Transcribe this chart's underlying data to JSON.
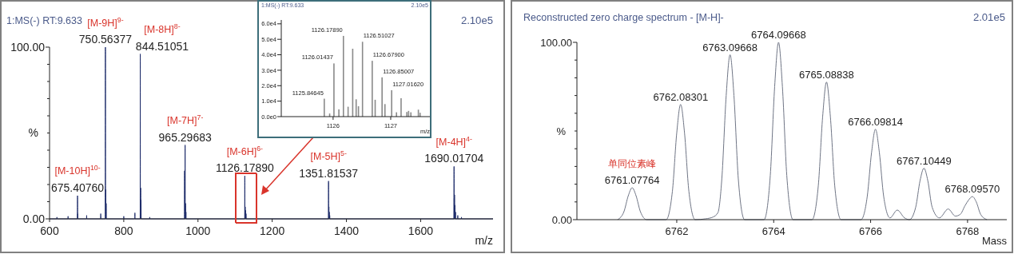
{
  "chart_data": [
    {
      "type": "line",
      "title": "1:MS(-) RT:9.633",
      "xlabel": "m/z",
      "ylabel": "%",
      "annotations": [
        "2.10e5",
        {
          "text": "[M-10H]$^{10-}$",
          "x": 675.41,
          "y": 13.5
        },
        {
          "text": "675.40760",
          "x": 675.41,
          "y": 13.5
        },
        {
          "text": "[M-9H]$^{9-}$",
          "x": 750.56,
          "y": 100
        },
        {
          "text": "750.56377",
          "x": 750.56,
          "y": 100
        },
        {
          "text": "[M-8H]$^{8-}$",
          "x": 844.51,
          "y": 96
        },
        {
          "text": "844.51051",
          "x": 844.51,
          "y": 96
        },
        {
          "text": "[M-7H]$^{7-}$",
          "x": 965.3,
          "y": 43
        },
        {
          "text": "965.29683",
          "x": 965.3,
          "y": 43
        },
        {
          "text": "[M-6H]$^{6-}$",
          "x": 1126.18,
          "y": 25
        },
        {
          "text": "1126.17890",
          "x": 1126.18,
          "y": 25
        },
        {
          "text": "[M-5H]$^{5-}$",
          "x": 1351.82,
          "y": 22
        },
        {
          "text": "1351.81537",
          "x": 1351.82,
          "y": 22
        },
        {
          "text": "[M-4H]$^{4-}$",
          "x": 1690.02,
          "y": 30.5
        },
        {
          "text": "1690.01704",
          "x": 1690.02,
          "y": 30.5
        }
      ],
      "x": [
        600,
        619.7,
        620,
        620.3,
        649.7,
        650,
        650.3,
        675.1,
        675.41,
        675.7,
        675.7,
        676,
        676.3,
        699.7,
        700,
        700.3,
        737.7,
        738,
        738.3,
        750.26,
        750.56,
        750.86,
        751.2,
        751.5,
        751.8,
        752.3,
        752.6,
        752.9,
        799.7,
        800,
        800.3,
        829.7,
        830,
        830.3,
        844.21,
        844.51,
        844.81,
        845.2,
        845.5,
        845.8,
        846.3,
        846.6,
        846.9,
        869.7,
        870,
        870.3,
        963.6,
        963.9,
        964.2,
        965.0,
        965.3,
        965.6,
        966.2,
        966.5,
        966.8,
        967.3,
        967.6,
        967.9,
        1125.88,
        1126.18,
        1126.48,
        1126.9,
        1127.2,
        1127.5,
        1127.9,
        1128.2,
        1128.5,
        1129.2,
        1129.5,
        1129.8,
        1351.52,
        1351.82,
        1352.12,
        1352.5,
        1352.8,
        1353.1,
        1353.5,
        1353.8,
        1354.1,
        1354.7,
        1355,
        1355.3,
        1689.72,
        1690.02,
        1690.3,
        1690.5,
        1690.8,
        1691.0,
        1691.3,
        1691.6,
        1692.2,
        1692.5,
        1692.8,
        1693.7,
        1694,
        1694.3,
        1699.7,
        1700,
        1700.3,
        1709.7,
        1710,
        1710.3,
        1795
      ],
      "series": [
        {
          "color": "#1f2d6b",
          "values": [
            0,
            0,
            1,
            0,
            0,
            1.5,
            0,
            0,
            13.5,
            0,
            0,
            3,
            0,
            0,
            2,
            0,
            0,
            3,
            0,
            0,
            100,
            0,
            0,
            17,
            0,
            0,
            9,
            0,
            0,
            1.5,
            0,
            0,
            3.5,
            0,
            0,
            96,
            0,
            0,
            18,
            0,
            0,
            11,
            0,
            0,
            1,
            0,
            0,
            28,
            0,
            0,
            43,
            0,
            0,
            9,
            0,
            0,
            4,
            0,
            0,
            25,
            0,
            0,
            7,
            0,
            0,
            5,
            0,
            0,
            3,
            0,
            0,
            22,
            0,
            0,
            7,
            0,
            0,
            4,
            0,
            0,
            2,
            0,
            0,
            30.5,
            0,
            12,
            0,
            0,
            14,
            0,
            0,
            8,
            0,
            0,
            4,
            0,
            0,
            2,
            0,
            0,
            1,
            0,
            0
          ]
        }
      ],
      "xlim": [
        600,
        1795
      ],
      "ylim": [
        0,
        100
      ],
      "xticks": [
        600,
        800,
        1000,
        1200,
        1400,
        1600
      ],
      "yticks": [
        {
          "value": 0,
          "label": "0.00"
        },
        {
          "value": 10,
          "label": null
        },
        {
          "value": 20,
          "label": null
        },
        {
          "value": 30,
          "label": null
        },
        {
          "value": 40,
          "label": null
        },
        {
          "value": 50,
          "label": null
        },
        {
          "value": 60,
          "label": null
        },
        {
          "value": 70,
          "label": null
        },
        {
          "value": 80,
          "label": null
        },
        {
          "value": 90,
          "label": null
        },
        {
          "value": 100,
          "label": "100.00"
        }
      ]
    },
    {
      "type": "bar",
      "title": "1:MS(-) RT:9.633",
      "xlabel": "m/z",
      "color": "#8a8a8a",
      "annotations": [
        "2.10e5",
        {
          "text": "1125.84645",
          "x": 1125.84645,
          "y": 11600
        },
        {
          "text": "1126.01437",
          "x": 1126.01437,
          "y": 34400
        },
        {
          "text": "1126.17890",
          "x": 1126.1789,
          "y": 52200
        },
        {
          "text": "1126.51027",
          "x": 1126.51027,
          "y": 48400
        },
        {
          "text": "1126.67900",
          "x": 1126.679,
          "y": 36100
        },
        {
          "text": "1126.85007",
          "x": 1126.85007,
          "y": 25400
        },
        {
          "text": "1127.01620",
          "x": 1127.0162,
          "y": 17100
        }
      ],
      "x": [
        1125.84645,
        1125.94,
        1126.01437,
        1126.1,
        1126.1789,
        1126.26,
        1126.34,
        1126.4,
        1126.44,
        1126.51027,
        1126.679,
        1126.73,
        1126.85007,
        1126.9,
        1127.0162,
        1127.1,
        1127.18,
        1127.28,
        1127.31,
        1127.35,
        1127.48,
        1127.51
      ],
      "values": [
        11600,
        2000,
        34400,
        4700,
        52200,
        6400,
        43900,
        11200,
        6700,
        48400,
        36100,
        10900,
        25400,
        8100,
        17100,
        2800,
        11900,
        3000,
        3700,
        2800,
        4500,
        2500
      ],
      "xlim": [
        1125.1,
        1127.68
      ],
      "ylim": [
        0,
        62500
      ],
      "xticks": [
        1126,
        1127
      ],
      "yticks": [
        {
          "value": 0,
          "label": "0.0e0"
        },
        {
          "value": 10000,
          "label": "1.0e4"
        },
        {
          "value": 20000,
          "label": "2.0e4"
        },
        {
          "value": 30000,
          "label": "3.0e4"
        },
        {
          "value": 40000,
          "label": "4.0e4"
        },
        {
          "value": 50000,
          "label": "5.0e4"
        },
        {
          "value": 60000,
          "label": "6.0e4"
        }
      ]
    },
    {
      "type": "line",
      "title": "Reconstructed zero charge spectrum - [M-H]-",
      "xlabel": "Mass",
      "ylabel": "%",
      "annotations": [
        "2.01e5",
        {
          "text": "单同位素峰",
          "x": 6761.08,
          "y": 18
        },
        {
          "text": "6761.07764",
          "x": 6761.08,
          "y": 18
        },
        {
          "text": "6762.08301",
          "x": 6762.08,
          "y": 65
        },
        {
          "text": "6763.09668",
          "x": 6763.1,
          "y": 93
        },
        {
          "text": "6764.09668",
          "x": 6764.1,
          "y": 100
        },
        {
          "text": "6765.08838",
          "x": 6765.09,
          "y": 77.6
        },
        {
          "text": "6766.09814",
          "x": 6766.1,
          "y": 51
        },
        {
          "text": "6767.10449",
          "x": 6767.1,
          "y": 29
        },
        {
          "text": "6768.09570",
          "x": 6768.1,
          "y": 13
        }
      ],
      "x": [
        6760.78,
        6760.91,
        6761.0,
        6761.08,
        6761.16,
        6761.25,
        6761.38,
        6761.78,
        6761.91,
        6762.0,
        6762.08,
        6762.16,
        6762.25,
        6762.38,
        6762.6,
        6762.75,
        6762.85,
        6762.93,
        6763.02,
        6763.1,
        6763.18,
        6763.27,
        6763.4,
        6763.8,
        6763.93,
        6764.02,
        6764.1,
        6764.18,
        6764.27,
        6764.4,
        6764.79,
        6764.92,
        6765.01,
        6765.09,
        6765.17,
        6765.26,
        6765.39,
        6765.8,
        6765.93,
        6766.02,
        6766.1,
        6766.18,
        6766.27,
        6766.4,
        6766.55,
        6766.7,
        6766.8,
        6766.93,
        6767.02,
        6767.1,
        6767.18,
        6767.27,
        6767.42,
        6767.6,
        6767.75,
        6767.85,
        6767.95,
        6768.02,
        6768.1,
        6768.18,
        6768.27,
        6768.4
      ],
      "series": [
        {
          "color": "#6f7585",
          "values": [
            0,
            4.5,
            13.5,
            18,
            13.5,
            4.5,
            0,
            0,
            16,
            49,
            65,
            49,
            16,
            0,
            0.5,
            1.5,
            4,
            23,
            70,
            93,
            70,
            23,
            0,
            0,
            25,
            75,
            100,
            75,
            25,
            0,
            0,
            19,
            58,
            77.6,
            58,
            19,
            0,
            0,
            13,
            38,
            51,
            38,
            13,
            1,
            5.4,
            1,
            0,
            7,
            22,
            29,
            22,
            7,
            1,
            6,
            2,
            3,
            8,
            11,
            13,
            10,
            3,
            0
          ]
        }
      ],
      "xlim": [
        6759.94,
        6768.81
      ],
      "ylim": [
        0,
        100
      ],
      "xticks": [
        6762,
        6764,
        6766,
        6768
      ],
      "yticks": [
        {
          "value": 0,
          "label": "0.00"
        },
        {
          "value": 10,
          "label": null
        },
        {
          "value": 20,
          "label": null
        },
        {
          "value": 30,
          "label": null
        },
        {
          "value": 40,
          "label": null
        },
        {
          "value": 50,
          "label": null
        },
        {
          "value": 60,
          "label": null
        },
        {
          "value": 70,
          "label": null
        },
        {
          "value": 80,
          "label": null
        },
        {
          "value": 90,
          "label": null
        },
        {
          "value": 100,
          "label": "100.00"
        }
      ]
    }
  ]
}
